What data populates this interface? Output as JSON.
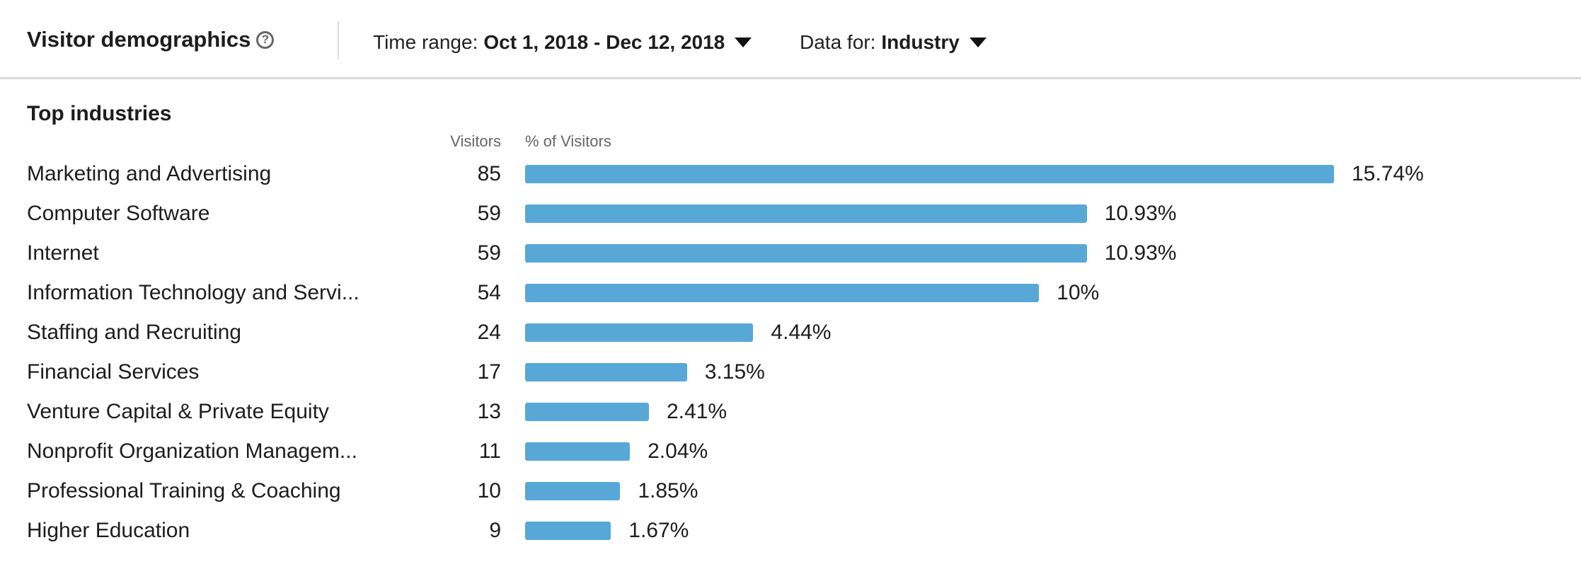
{
  "header": {
    "title": "Visitor demographics",
    "help_icon": "question-circle-icon",
    "time_range_label": "Time range:",
    "time_range_value": "Oct 1, 2018 - Dec 12, 2018",
    "data_for_label": "Data for:",
    "data_for_value": "Industry"
  },
  "section": {
    "title": "Top industries",
    "col_visitors": "Visitors",
    "col_pct": "% of Visitors"
  },
  "colors": {
    "bar": "#57a8d6"
  },
  "chart_data": {
    "type": "bar",
    "orientation": "horizontal",
    "categories": [
      "Marketing and Advertising",
      "Computer Software",
      "Internet",
      "Information Technology and Servi...",
      "Staffing and Recruiting",
      "Financial Services",
      "Venture Capital & Private Equity",
      "Nonprofit Organization Managem...",
      "Professional Training & Coaching",
      "Higher Education"
    ],
    "visitors": [
      85,
      59,
      59,
      54,
      24,
      17,
      13,
      11,
      10,
      9
    ],
    "values": [
      15.74,
      10.93,
      10.93,
      10,
      4.44,
      3.15,
      2.41,
      2.04,
      1.85,
      1.67
    ],
    "labels": [
      "15.74%",
      "10.93%",
      "10.93%",
      "10%",
      "4.44%",
      "3.15%",
      "2.41%",
      "2.04%",
      "1.85%",
      "1.67%"
    ]
  }
}
